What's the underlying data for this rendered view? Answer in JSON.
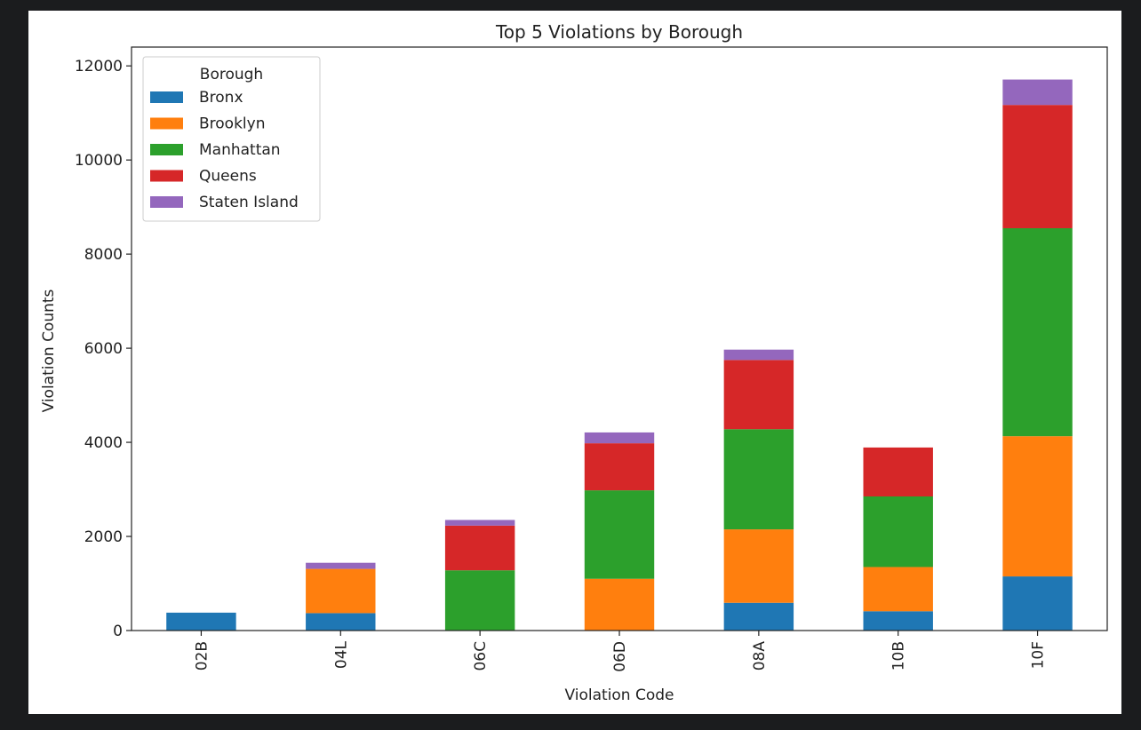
{
  "chart_data": {
    "type": "bar",
    "stacked": true,
    "title": "Top 5 Violations by Borough",
    "xlabel": "Violation Code",
    "ylabel": "Violation Counts",
    "ylim": [
      0,
      12400
    ],
    "yticks": [
      0,
      2000,
      4000,
      6000,
      8000,
      10000,
      12000
    ],
    "grid": false,
    "categories": [
      "02B",
      "04L",
      "06C",
      "06D",
      "08A",
      "10B",
      "10F"
    ],
    "legend": {
      "title": "Borough",
      "placement": "top-left"
    },
    "series": [
      {
        "name": "Bronx",
        "color": "#1f77b4",
        "values": [
          380,
          370,
          0,
          0,
          590,
          410,
          1150
        ]
      },
      {
        "name": "Brooklyn",
        "color": "#ff7f0e",
        "values": [
          0,
          940,
          0,
          1100,
          1560,
          940,
          2980
        ]
      },
      {
        "name": "Manhattan",
        "color": "#2ca02c",
        "values": [
          0,
          0,
          1280,
          1880,
          2130,
          1500,
          4420
        ]
      },
      {
        "name": "Queens",
        "color": "#d62728",
        "values": [
          0,
          0,
          950,
          1000,
          1470,
          1040,
          2620
        ]
      },
      {
        "name": "Staten Island",
        "color": "#9467bd",
        "values": [
          0,
          130,
          120,
          230,
          220,
          0,
          540
        ]
      }
    ]
  }
}
